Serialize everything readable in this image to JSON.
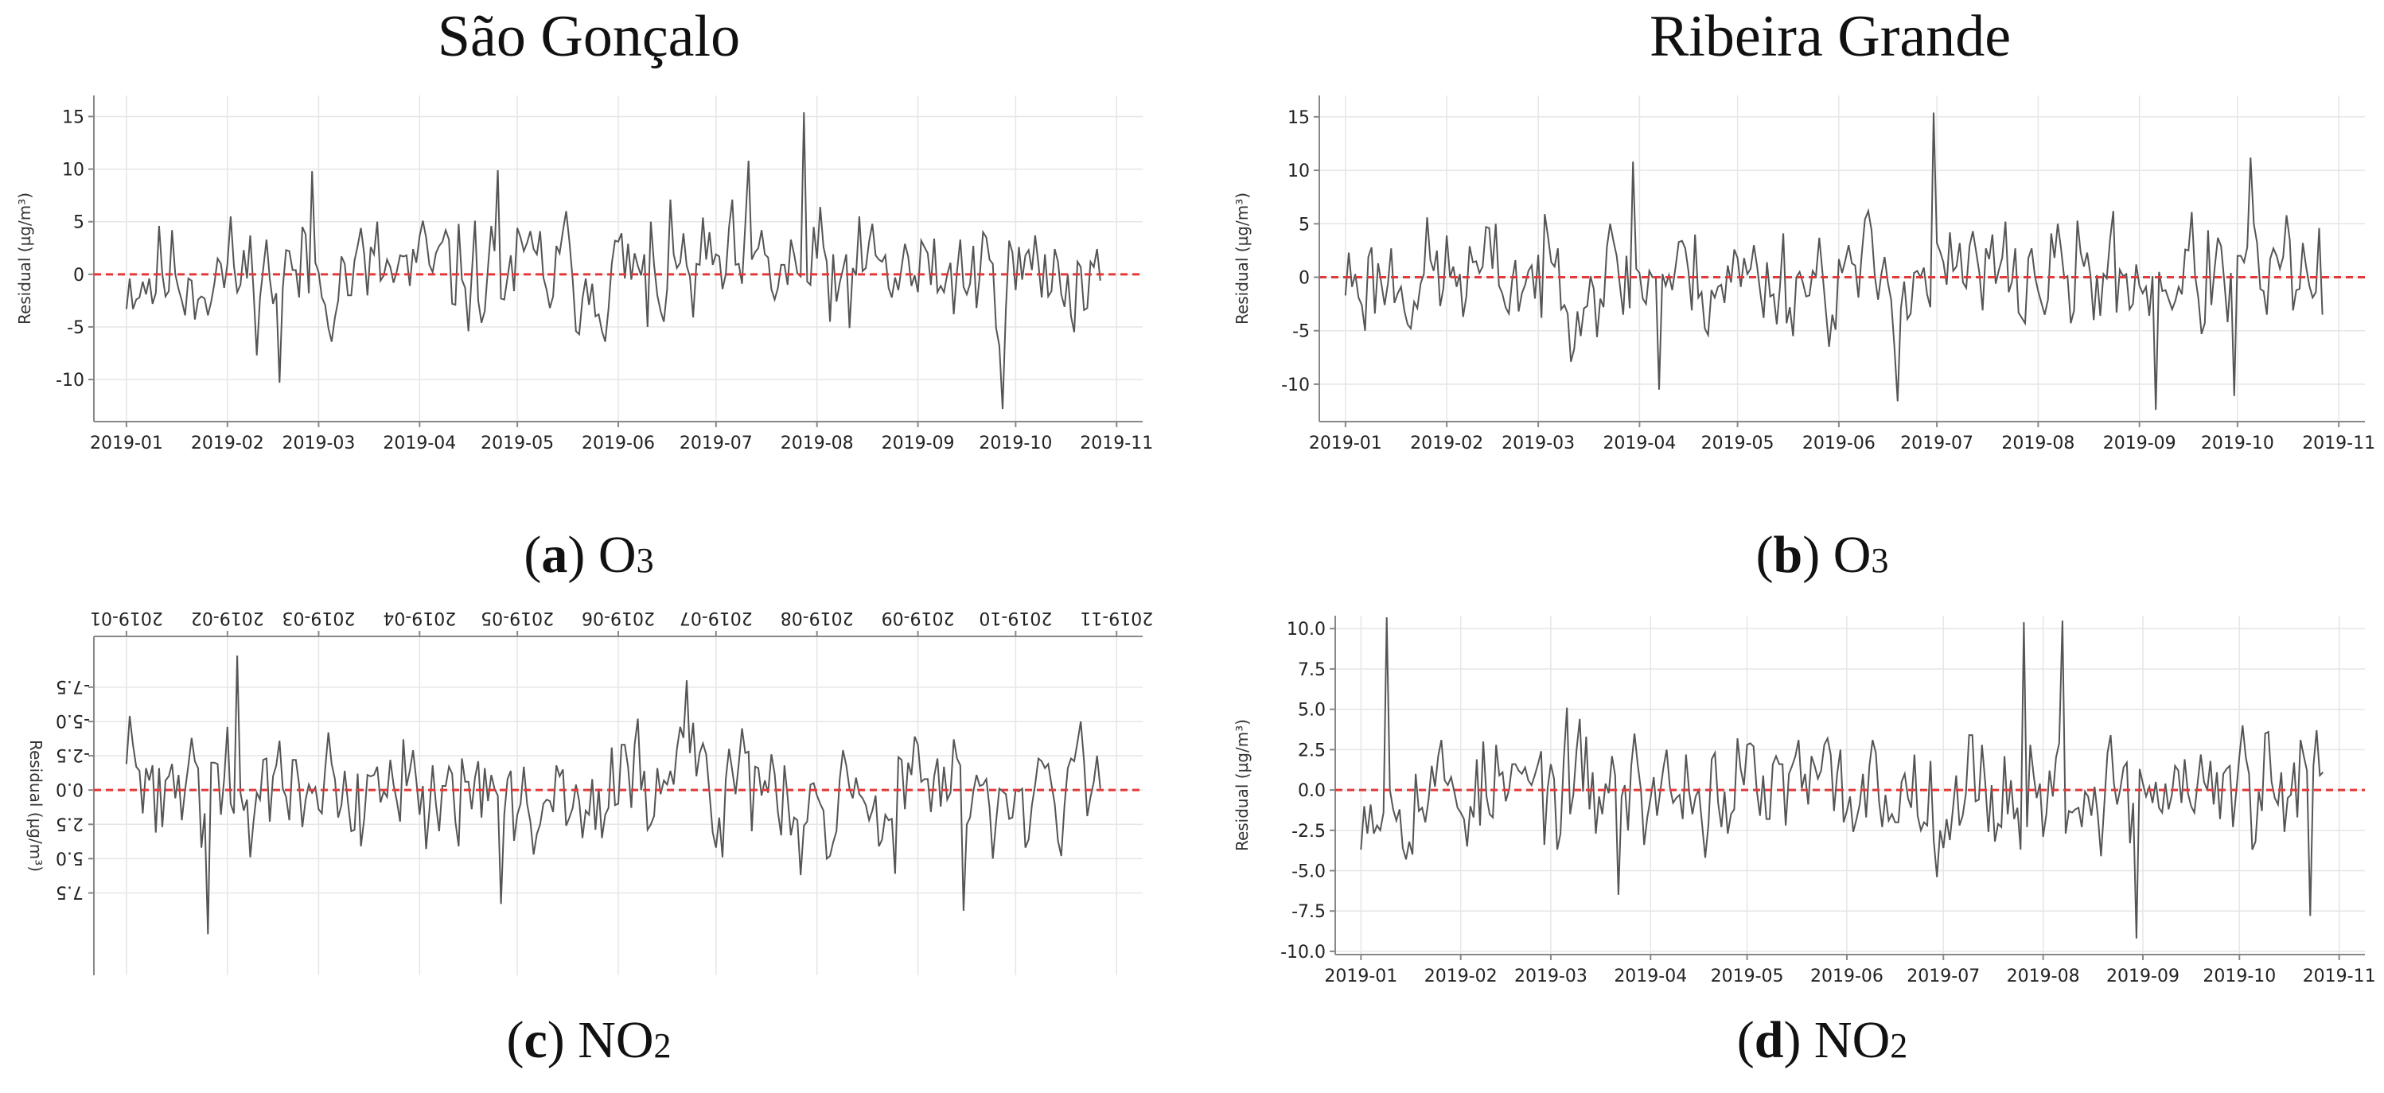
{
  "column_titles": {
    "left": "São Gonçalo",
    "right": "Ribeira Grande"
  },
  "captions": [
    {
      "letter": "a",
      "species": "O",
      "sub": "3"
    },
    {
      "letter": "b",
      "species": "O",
      "sub": "3"
    },
    {
      "letter": "c",
      "species": "NO",
      "sub": "2"
    },
    {
      "letter": "d",
      "species": "NO",
      "sub": "2"
    }
  ],
  "colors": {
    "line": "#555555",
    "zero": "#e23a3a",
    "grid": "#e6e6e6",
    "axis": "#888888"
  },
  "chart_data": [
    {
      "id": "a",
      "type": "line",
      "title": "",
      "location": "São Gonçalo",
      "pollutant": "O3",
      "ylabel": "Residual (µg/m³)",
      "xlabel": "",
      "ylim": [
        -14,
        17
      ],
      "yticks": [
        -10,
        -5,
        0,
        5,
        10,
        15
      ],
      "ytick_labels": [
        "-10",
        "-5",
        "0",
        "5",
        "10",
        "15"
      ],
      "xlim": [
        -10,
        312
      ],
      "xticks": [
        0,
        31,
        59,
        90,
        120,
        151,
        181,
        212,
        243,
        273,
        304
      ],
      "xtick_labels": [
        "2019-01",
        "2019-02",
        "2019-03",
        "2019-04",
        "2019-05",
        "2019-06",
        "2019-07",
        "2019-08",
        "2019-09",
        "2019-10",
        "2019-11"
      ],
      "zero_line": 0,
      "mirrored": false,
      "n_days": 300,
      "seed": 11,
      "spikes": [
        [
          208,
          15.4
        ],
        [
          216,
          -4.5
        ],
        [
          160,
          -5.0
        ],
        [
          114,
          9.9
        ],
        [
          47,
          -10.3
        ],
        [
          269,
          -12.8
        ],
        [
          191,
          10.8
        ],
        [
          57,
          9.8
        ]
      ],
      "series": [
        {
          "name": "Residual",
          "values": []
        }
      ]
    },
    {
      "id": "b",
      "type": "line",
      "title": "",
      "location": "Ribeira Grande",
      "pollutant": "O3",
      "ylabel": "Residual (µg/m³)",
      "xlabel": "",
      "ylim": [
        -13.5,
        17
      ],
      "yticks": [
        -10,
        -5,
        0,
        5,
        10,
        15
      ],
      "ytick_labels": [
        "-10",
        "-5",
        "0",
        "5",
        "10",
        "15"
      ],
      "xlim": [
        -8,
        312
      ],
      "xticks": [
        0,
        31,
        59,
        90,
        120,
        151,
        181,
        212,
        243,
        273,
        304
      ],
      "xtick_labels": [
        "2019-01",
        "2019-02",
        "2019-03",
        "2019-04",
        "2019-05",
        "2019-06",
        "2019-07",
        "2019-08",
        "2019-09",
        "2019-10",
        "2019-11"
      ],
      "zero_line": 0,
      "mirrored": false,
      "n_days": 300,
      "seed": 23,
      "spikes": [
        [
          180,
          15.4
        ],
        [
          169,
          -11.6
        ],
        [
          248,
          -12.4
        ],
        [
          272,
          -11.1
        ],
        [
          277,
          11.2
        ],
        [
          96,
          -10.5
        ],
        [
          88,
          10.8
        ]
      ],
      "series": [
        {
          "name": "Residual",
          "values": []
        }
      ]
    },
    {
      "id": "c",
      "type": "line",
      "title": "",
      "location": "São Gonçalo",
      "pollutant": "NO2",
      "ylabel": "Residual (µg/m³)",
      "xlabel": "",
      "ylim": [
        -11.2,
        13.5
      ],
      "yticks": [
        -7.5,
        -5,
        -2.5,
        0,
        2.5,
        5,
        7.5
      ],
      "ytick_labels": [
        "-7.5",
        "-5.0",
        "-2.5",
        "0.0",
        "2.5",
        "5.0",
        "7.5"
      ],
      "xlim": [
        -10,
        312
      ],
      "xticks": [
        0,
        31,
        59,
        90,
        120,
        151,
        181,
        212,
        243,
        273,
        304
      ],
      "xtick_labels": [
        "2019-01",
        "2019-02",
        "2019-03",
        "2019-04",
        "2019-05",
        "2019-06",
        "2019-07",
        "2019-08",
        "2019-09",
        "2019-10",
        "2019-11"
      ],
      "zero_line": 0,
      "mirrored": true,
      "n_days": 300,
      "seed": 37,
      "spikes": [
        [
          25,
          10.5
        ],
        [
          34,
          -9.8
        ],
        [
          115,
          8.3
        ],
        [
          172,
          -8.0
        ],
        [
          257,
          8.8
        ]
      ],
      "series": [
        {
          "name": "Residual",
          "values": []
        }
      ]
    },
    {
      "id": "d",
      "type": "line",
      "title": "",
      "location": "Ribeira Grande",
      "pollutant": "NO2",
      "ylabel": "Residual (µg/m³)",
      "xlabel": "",
      "ylim": [
        -10.2,
        10.8
      ],
      "yticks": [
        -10,
        -7.5,
        -5,
        -2.5,
        0,
        2.5,
        5,
        7.5,
        10
      ],
      "ytick_labels": [
        "-10.0",
        "-7.5",
        "-5.0",
        "-2.5",
        "0.0",
        "2.5",
        "5.0",
        "7.5",
        "10.0"
      ],
      "xlim": [
        -8,
        312
      ],
      "xticks": [
        0,
        31,
        59,
        90,
        120,
        151,
        181,
        212,
        243,
        273,
        304
      ],
      "xtick_labels": [
        "2019-01",
        "2019-02",
        "2019-03",
        "2019-04",
        "2019-05",
        "2019-06",
        "2019-07",
        "2019-08",
        "2019-09",
        "2019-10",
        "2019-11"
      ],
      "zero_line": 0,
      "mirrored": false,
      "n_days": 300,
      "seed": 53,
      "spikes": [
        [
          8,
          10.7
        ],
        [
          206,
          10.4
        ],
        [
          218,
          10.5
        ],
        [
          241,
          -9.2
        ],
        [
          295,
          -7.8
        ],
        [
          80,
          -6.5
        ]
      ],
      "series": [
        {
          "name": "Residual",
          "values": []
        }
      ]
    }
  ]
}
